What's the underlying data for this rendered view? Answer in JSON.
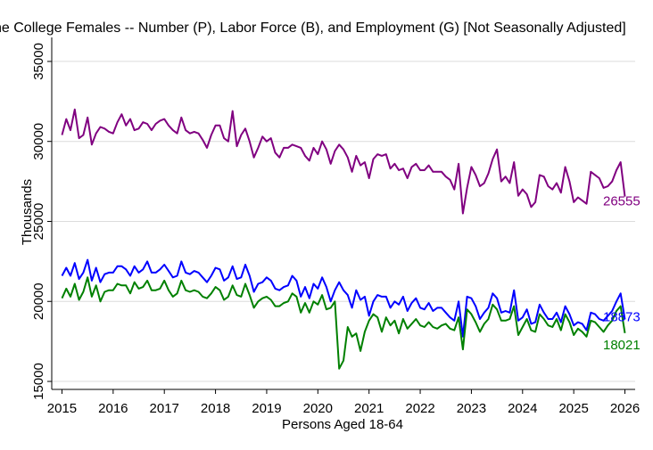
{
  "chart_data": {
    "type": "line",
    "title": "Some College Females -- Number (P), Labor Force (B), and Employment (G) [Not Seasonally Adjusted]",
    "xlabel": "Persons Aged 18-64",
    "ylabel": "Thousands",
    "xlim": [
      2014.8,
      2026.2
    ],
    "ylim": [
      14500,
      36500
    ],
    "x_ticks": [
      2015,
      2016,
      2017,
      2018,
      2019,
      2020,
      2021,
      2022,
      2023,
      2024,
      2025,
      2026
    ],
    "y_ticks": [
      15000,
      20000,
      25000,
      30000,
      35000
    ],
    "grid": true,
    "legend": "none",
    "x_start": 2015.0,
    "x_step": 0.0833333,
    "series": [
      {
        "name": "P",
        "color": "#800080",
        "end_label": "26555",
        "values": [
          30400,
          31400,
          30700,
          32000,
          30200,
          30400,
          31500,
          29800,
          30500,
          30900,
          30800,
          30600,
          30500,
          31200,
          31700,
          31000,
          31400,
          30700,
          30800,
          31200,
          31100,
          30700,
          31100,
          31300,
          31400,
          31000,
          30700,
          30500,
          31500,
          30700,
          30500,
          30600,
          30500,
          30100,
          29600,
          30400,
          31000,
          31000,
          30200,
          30000,
          31900,
          29700,
          30400,
          30800,
          30000,
          29000,
          29600,
          30300,
          30000,
          30200,
          29300,
          29000,
          29600,
          29600,
          29800,
          29700,
          29600,
          29100,
          28800,
          29600,
          29200,
          30000,
          29500,
          28600,
          29400,
          29800,
          29500,
          29000,
          28100,
          29100,
          28500,
          28700,
          27700,
          28900,
          29200,
          29100,
          29200,
          28300,
          28600,
          28200,
          28300,
          27700,
          28400,
          28600,
          28200,
          28200,
          28500,
          28100,
          28100,
          28100,
          27800,
          27600,
          27000,
          28600,
          25500,
          27100,
          28400,
          27900,
          27200,
          27400,
          28000,
          28900,
          29500,
          27500,
          27800,
          27400,
          28700,
          26600,
          27000,
          26700,
          25900,
          26200,
          27900,
          27800,
          27200,
          27000,
          27400,
          26800,
          28400,
          27500,
          26200,
          26500,
          26300,
          26100,
          28100,
          27900,
          27700,
          27100,
          27200,
          27500,
          28200,
          28700,
          26555
        ]
      },
      {
        "name": "B",
        "color": "#0000ff",
        "end_label": "18873",
        "values": [
          21600,
          22100,
          21600,
          22400,
          21400,
          21800,
          22600,
          21300,
          22100,
          21200,
          21700,
          21800,
          21800,
          22200,
          22200,
          22000,
          21600,
          22200,
          21800,
          22000,
          22500,
          21800,
          21800,
          22000,
          22300,
          21900,
          21500,
          21600,
          22500,
          21800,
          21700,
          21900,
          21800,
          21500,
          21200,
          21600,
          22100,
          22000,
          21300,
          21500,
          22200,
          21400,
          21500,
          22300,
          21600,
          20600,
          21100,
          21200,
          21500,
          21300,
          20800,
          20700,
          20900,
          21000,
          21600,
          21300,
          20300,
          20900,
          20200,
          21100,
          20800,
          21500,
          20900,
          20000,
          20700,
          21200,
          20700,
          20400,
          19600,
          20700,
          20100,
          20300,
          19100,
          20000,
          20400,
          20300,
          20300,
          19600,
          20000,
          19800,
          20300,
          19400,
          19900,
          20200,
          19600,
          19500,
          19900,
          19400,
          19600,
          19600,
          19300,
          19000,
          18800,
          20000,
          17800,
          20300,
          20200,
          19700,
          18900,
          19300,
          19600,
          20500,
          20200,
          19300,
          19400,
          19300,
          20700,
          18800,
          19000,
          19500,
          18600,
          18700,
          19800,
          19300,
          18900,
          18900,
          19300,
          18700,
          19700,
          19200,
          18500,
          18700,
          18600,
          18200,
          19300,
          19200,
          18900,
          18800,
          19100,
          19400,
          20000,
          20500,
          18873
        ]
      },
      {
        "name": "G",
        "color": "#008000",
        "end_label": "18021",
        "values": [
          20200,
          20800,
          20300,
          21100,
          20100,
          20600,
          21500,
          20300,
          21000,
          20000,
          20600,
          20700,
          20700,
          21100,
          21000,
          21000,
          20500,
          21200,
          20800,
          20900,
          21300,
          20700,
          20700,
          20800,
          21300,
          20700,
          20300,
          20500,
          21300,
          20700,
          20600,
          20700,
          20600,
          20300,
          20200,
          20500,
          20900,
          20700,
          20100,
          20300,
          21000,
          20400,
          20300,
          21100,
          20400,
          19600,
          20000,
          20200,
          20300,
          20100,
          19700,
          19700,
          19900,
          20000,
          20500,
          20300,
          19300,
          19900,
          19300,
          20000,
          19800,
          20400,
          19500,
          19600,
          20000,
          15800,
          16300,
          18400,
          17800,
          18000,
          16900,
          18100,
          18800,
          19200,
          19000,
          18100,
          19000,
          18500,
          18800,
          18000,
          18900,
          18300,
          18600,
          18900,
          18500,
          18400,
          18700,
          18400,
          18300,
          18500,
          18600,
          18300,
          18200,
          19000,
          17000,
          19500,
          19200,
          18700,
          18100,
          18600,
          18900,
          19800,
          19500,
          18800,
          18800,
          18900,
          19700,
          17900,
          18400,
          18900,
          18200,
          18100,
          19200,
          18900,
          18500,
          18400,
          18900,
          18200,
          19200,
          18700,
          17900,
          18300,
          18100,
          17800,
          18800,
          18700,
          18400,
          18100,
          18500,
          18800,
          19400,
          19700,
          18021
        ]
      }
    ]
  }
}
